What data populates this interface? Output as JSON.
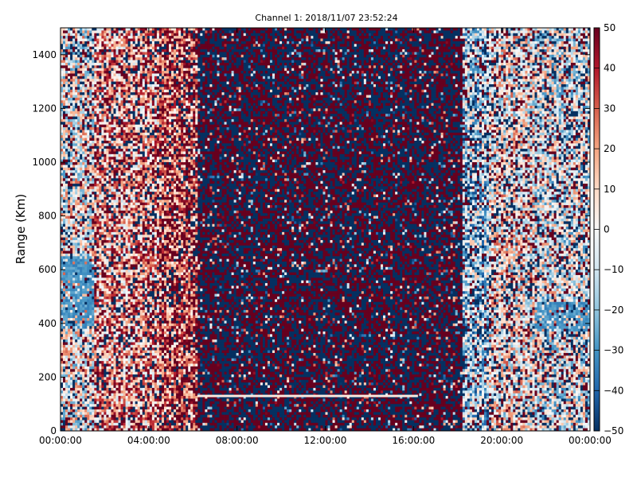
{
  "chart_data": {
    "type": "heatmap",
    "title": "Channel 1: 2018/11/07 23:52:24",
    "xlabel": "",
    "ylabel": "Range (Km)",
    "x_ticks": [
      "00:00:00",
      "04:00:00",
      "08:00:00",
      "12:00:00",
      "16:00:00",
      "20:00:00",
      "00:00:00"
    ],
    "x_range_hours": [
      0,
      24
    ],
    "y_ticks": [
      0,
      200,
      400,
      600,
      800,
      1000,
      1200,
      1400
    ],
    "ylim": [
      0,
      1500
    ],
    "colorbar": {
      "colormap": "RdBu_r",
      "range": [
        -50,
        50
      ],
      "ticks": [
        50,
        40,
        30,
        20,
        10,
        0,
        -10,
        -20,
        -30,
        -40,
        -50
      ],
      "colors": [
        "#053061",
        "#2166ac",
        "#4393c3",
        "#92c5de",
        "#d1e5f0",
        "#f7f7f7",
        "#fddbc7",
        "#f4a582",
        "#d6604d",
        "#b2182b",
        "#67001f"
      ]
    },
    "grid": false,
    "regions": [
      {
        "hours": [
          0,
          1.5
        ],
        "description": "mixed noise with coherent negative (-30 to -40) feature near 400-650 Km",
        "mean": 0
      },
      {
        "hours": [
          1.5,
          4.5
        ],
        "description": "coherent positive (10 to 30)",
        "mean": 18
      },
      {
        "hours": [
          4.5,
          6.2
        ],
        "description": "strong coherent positive (25 to 40)",
        "mean": 30
      },
      {
        "hours": [
          6.2,
          18.2
        ],
        "description": "saturated random noise (+/-50)",
        "mean": 0
      },
      {
        "hours": [
          18.2,
          19.4
        ],
        "description": "coherent negative (-10 to -25)",
        "mean": -15
      },
      {
        "hours": [
          19.4,
          21.5
        ],
        "description": "near-zero to weak positive",
        "mean": 3
      },
      {
        "hours": [
          21.5,
          24
        ],
        "description": "mixed, negative feature (-30) near 380-480 Km",
        "mean": -5
      }
    ],
    "features": [
      {
        "type": "horizontal_line",
        "value": 5,
        "range_km": 130,
        "hours": [
          6.2,
          16.2
        ]
      }
    ]
  }
}
